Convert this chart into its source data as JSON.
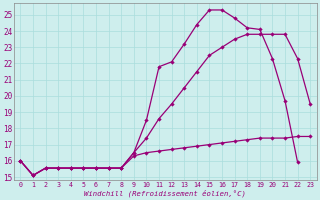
{
  "xlabel": "Windchill (Refroidissement éolien,°C)",
  "bg_color": "#ceeeed",
  "line_color": "#990077",
  "grid_color": "#aadddd",
  "xlim_min": -0.5,
  "xlim_max": 23.5,
  "ylim_min": 14.8,
  "ylim_max": 25.7,
  "yticks": [
    15,
    16,
    17,
    18,
    19,
    20,
    21,
    22,
    23,
    24,
    25
  ],
  "xticks": [
    0,
    1,
    2,
    3,
    4,
    5,
    6,
    7,
    8,
    9,
    10,
    11,
    12,
    13,
    14,
    15,
    16,
    17,
    18,
    19,
    20,
    21,
    22,
    23
  ],
  "curve_top_x": [
    0,
    1,
    2,
    3,
    4,
    5,
    6,
    7,
    8,
    9,
    10,
    11,
    12,
    13,
    14,
    15,
    16,
    17,
    18,
    19,
    20,
    21,
    22
  ],
  "curve_top_y": [
    16.0,
    15.1,
    15.55,
    15.55,
    15.55,
    15.55,
    15.55,
    15.55,
    15.55,
    16.5,
    18.5,
    21.8,
    22.1,
    23.2,
    24.4,
    25.3,
    25.3,
    24.8,
    24.2,
    24.1,
    22.3,
    19.7,
    15.9
  ],
  "curve_mid_x": [
    0,
    1,
    2,
    3,
    4,
    5,
    6,
    7,
    8,
    9,
    10,
    11,
    12,
    13,
    14,
    15,
    16,
    17,
    18,
    19,
    20,
    21,
    22,
    23
  ],
  "curve_mid_y": [
    16.0,
    15.1,
    15.55,
    15.55,
    15.55,
    15.55,
    15.55,
    15.55,
    15.55,
    16.5,
    17.4,
    18.6,
    19.5,
    20.5,
    21.5,
    22.5,
    23.0,
    23.5,
    23.8,
    23.8,
    23.8,
    23.8,
    22.3,
    19.5
  ],
  "curve_bot_x": [
    0,
    1,
    2,
    3,
    4,
    5,
    6,
    7,
    8,
    9,
    10,
    11,
    12,
    13,
    14,
    15,
    16,
    17,
    18,
    19,
    20,
    21,
    22,
    23
  ],
  "curve_bot_y": [
    16.0,
    15.1,
    15.55,
    15.55,
    15.55,
    15.55,
    15.55,
    15.55,
    15.55,
    16.3,
    16.5,
    16.6,
    16.7,
    16.8,
    16.9,
    17.0,
    17.1,
    17.2,
    17.3,
    17.4,
    17.4,
    17.4,
    17.5,
    17.5
  ]
}
